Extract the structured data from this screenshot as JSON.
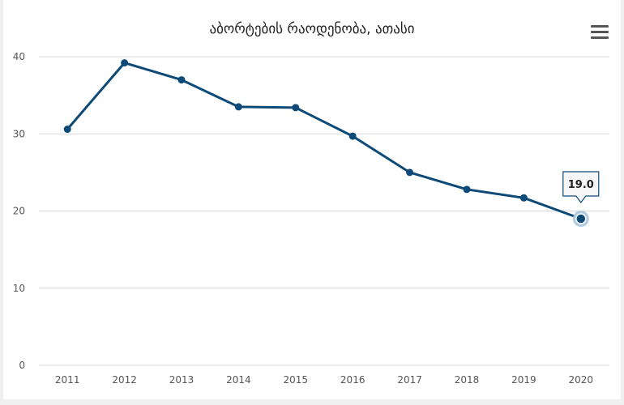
{
  "chart_data": {
    "type": "line",
    "title": "აბორტების რაოდენობა, ათასი",
    "categories": [
      "2011",
      "2012",
      "2013",
      "2014",
      "2015",
      "2016",
      "2017",
      "2018",
      "2019",
      "2020"
    ],
    "series": [
      {
        "values": [
          30.6,
          39.2,
          37.0,
          33.5,
          33.4,
          29.7,
          25.0,
          22.8,
          21.7,
          19.0
        ]
      }
    ],
    "ylim": [
      0,
      40
    ],
    "yticks": [
      0,
      10,
      20,
      30,
      40
    ],
    "grid": true,
    "colors": {
      "line": "#0d4a78",
      "grid": "#d8d8d8",
      "highlight_halo": "#a9c6e0"
    },
    "tooltip": {
      "category": "2020",
      "text": "19.0"
    }
  },
  "menu": {
    "icon": "hamburger-menu-icon"
  }
}
